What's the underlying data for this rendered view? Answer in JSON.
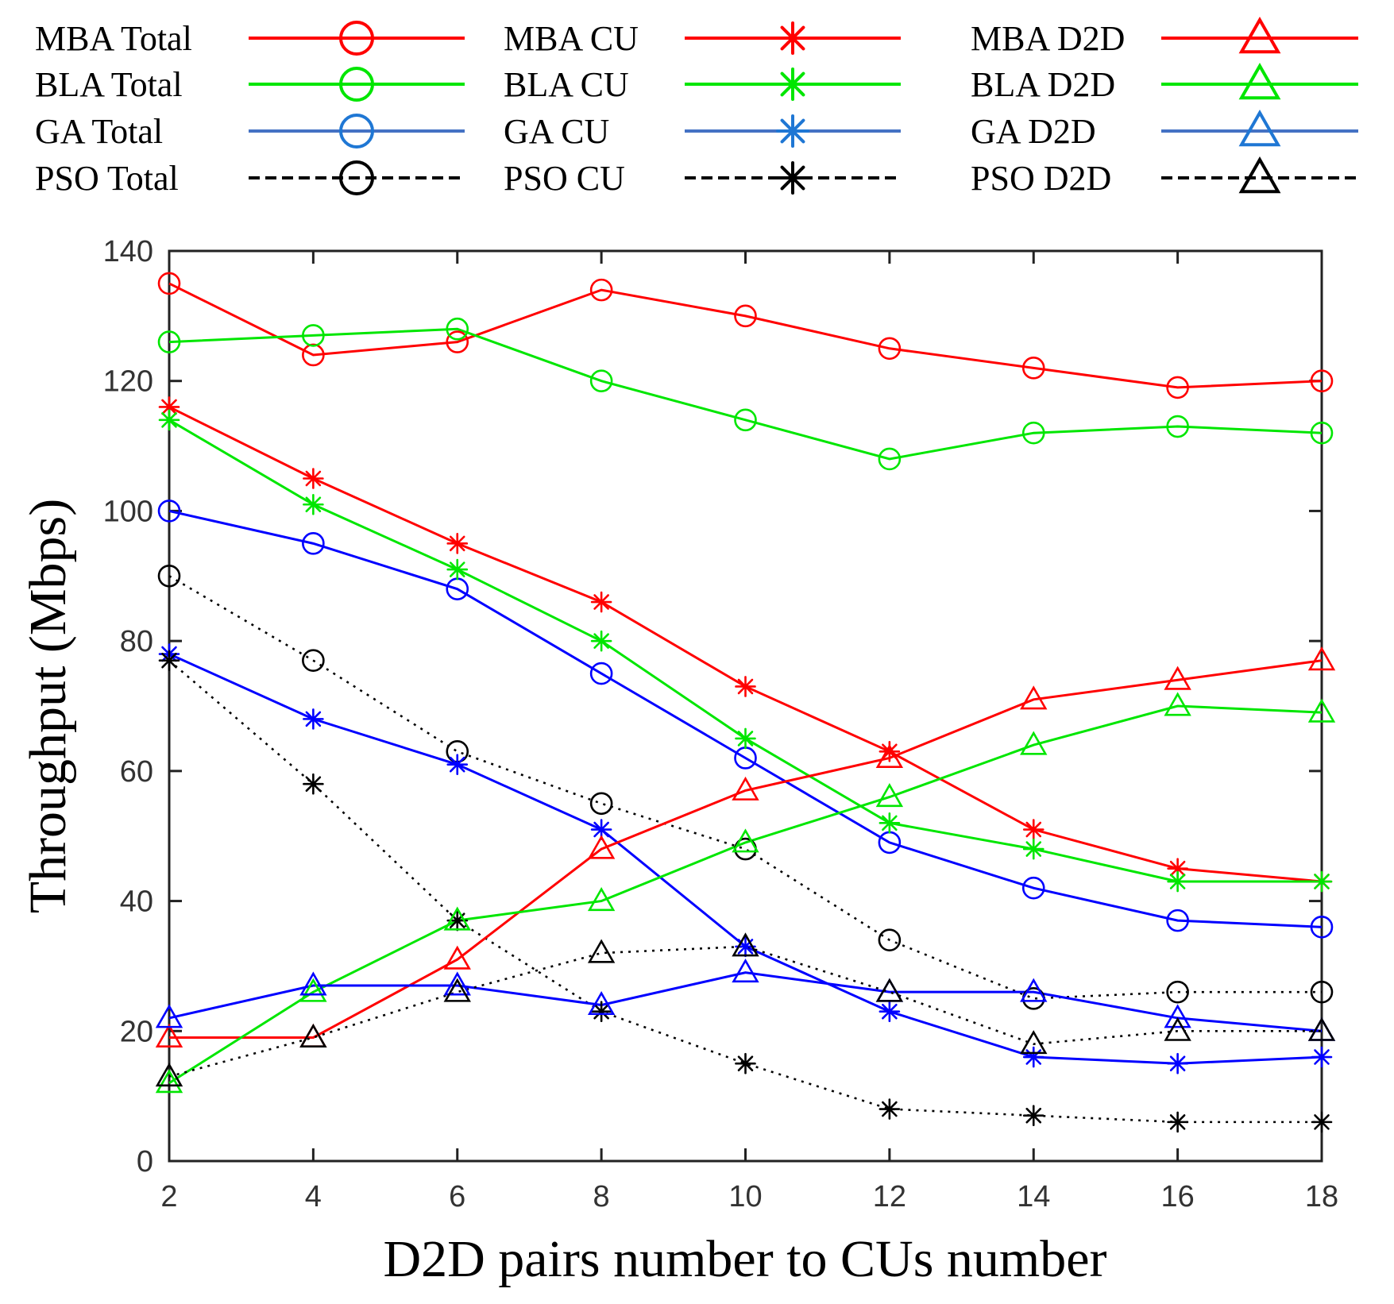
{
  "chart_data": {
    "type": "line",
    "title": "",
    "xlabel": "D2D pairs number to CUs number",
    "ylabel": "Throughput (Mbps)",
    "xlim": [
      2,
      18
    ],
    "ylim": [
      0,
      140
    ],
    "xticks": [
      2,
      4,
      6,
      8,
      10,
      12,
      14,
      16,
      18
    ],
    "yticks": [
      0,
      20,
      40,
      60,
      80,
      100,
      120,
      140
    ],
    "grid": false,
    "legend_position": "top",
    "x": [
      2,
      4,
      6,
      8,
      10,
      12,
      14,
      16,
      18
    ],
    "series": [
      {
        "name": "MBA Total",
        "color": "#ff0000",
        "marker": "circle",
        "dash": "solid",
        "values": [
          135,
          124,
          126,
          134,
          130,
          125,
          122,
          119,
          120
        ]
      },
      {
        "name": "BLA Total",
        "color": "#00e600",
        "marker": "circle",
        "dash": "solid",
        "values": [
          126,
          127,
          128,
          120,
          114,
          108,
          112,
          113,
          112
        ]
      },
      {
        "name": "GA Total",
        "color": "#0000ff",
        "marker": "circle",
        "dash": "solid",
        "values": [
          100,
          95,
          88,
          75,
          62,
          49,
          42,
          37,
          36
        ]
      },
      {
        "name": "PSO Total",
        "color": "#000000",
        "marker": "circle",
        "dash": "dotted",
        "values": [
          90,
          77,
          63,
          55,
          48,
          34,
          25,
          26,
          26
        ]
      },
      {
        "name": "MBA CU",
        "color": "#ff0000",
        "marker": "star",
        "dash": "solid",
        "values": [
          116,
          105,
          95,
          86,
          73,
          63,
          51,
          45,
          43
        ]
      },
      {
        "name": "BLA CU",
        "color": "#00e600",
        "marker": "star",
        "dash": "solid",
        "values": [
          114,
          101,
          91,
          80,
          65,
          52,
          48,
          43,
          43
        ]
      },
      {
        "name": "GA CU",
        "color": "#0000ff",
        "marker": "star",
        "dash": "solid",
        "values": [
          78,
          68,
          61,
          51,
          33,
          23,
          16,
          15,
          16
        ]
      },
      {
        "name": "PSO CU",
        "color": "#000000",
        "marker": "star",
        "dash": "dotted",
        "values": [
          77,
          58,
          37,
          23,
          15,
          8,
          7,
          6,
          6
        ]
      },
      {
        "name": "MBA D2D",
        "color": "#ff0000",
        "marker": "triangle",
        "dash": "solid",
        "values": [
          19,
          19,
          31,
          48,
          57,
          62,
          71,
          74,
          77
        ]
      },
      {
        "name": "BLA D2D",
        "color": "#00e600",
        "marker": "triangle",
        "dash": "solid",
        "values": [
          12,
          26,
          37,
          40,
          49,
          56,
          64,
          70,
          69
        ]
      },
      {
        "name": "GA D2D",
        "color": "#0000ff",
        "marker": "triangle",
        "dash": "solid",
        "values": [
          22,
          27,
          27,
          24,
          29,
          26,
          26,
          22,
          20
        ]
      },
      {
        "name": "PSO D2D",
        "color": "#000000",
        "marker": "triangle",
        "dash": "dotted",
        "values": [
          13,
          19,
          26,
          32,
          33,
          26,
          18,
          20,
          20
        ]
      }
    ],
    "legend": {
      "entries": [
        {
          "label": "MBA Total",
          "color": "#ff0000",
          "marker": "circle",
          "dash": "solid"
        },
        {
          "label": "BLA Total",
          "color": "#00e600",
          "marker": "circle",
          "dash": "solid"
        },
        {
          "label": "GA Total",
          "color": "#4472c4",
          "marker": "circle",
          "dash": "solid",
          "marker_color": "#1f77d4"
        },
        {
          "label": "PSO Total",
          "color": "#000000",
          "marker": "circle",
          "dash": "dashed"
        },
        {
          "label": "MBA CU",
          "color": "#ff0000",
          "marker": "star",
          "dash": "solid"
        },
        {
          "label": "BLA CU",
          "color": "#00e600",
          "marker": "star",
          "dash": "solid"
        },
        {
          "label": "GA CU",
          "color": "#4472c4",
          "marker": "star",
          "dash": "solid",
          "marker_color": "#1f77d4"
        },
        {
          "label": "PSO CU",
          "color": "#000000",
          "marker": "star",
          "dash": "dashed"
        },
        {
          "label": "MBA D2D",
          "color": "#ff0000",
          "marker": "triangle",
          "dash": "solid"
        },
        {
          "label": "BLA D2D",
          "color": "#00e600",
          "marker": "triangle",
          "dash": "solid"
        },
        {
          "label": "GA D2D",
          "color": "#4472c4",
          "marker": "triangle",
          "dash": "solid",
          "marker_color": "#1f77d4"
        },
        {
          "label": "PSO D2D",
          "color": "#000000",
          "marker": "triangle",
          "dash": "dashed"
        }
      ]
    }
  }
}
